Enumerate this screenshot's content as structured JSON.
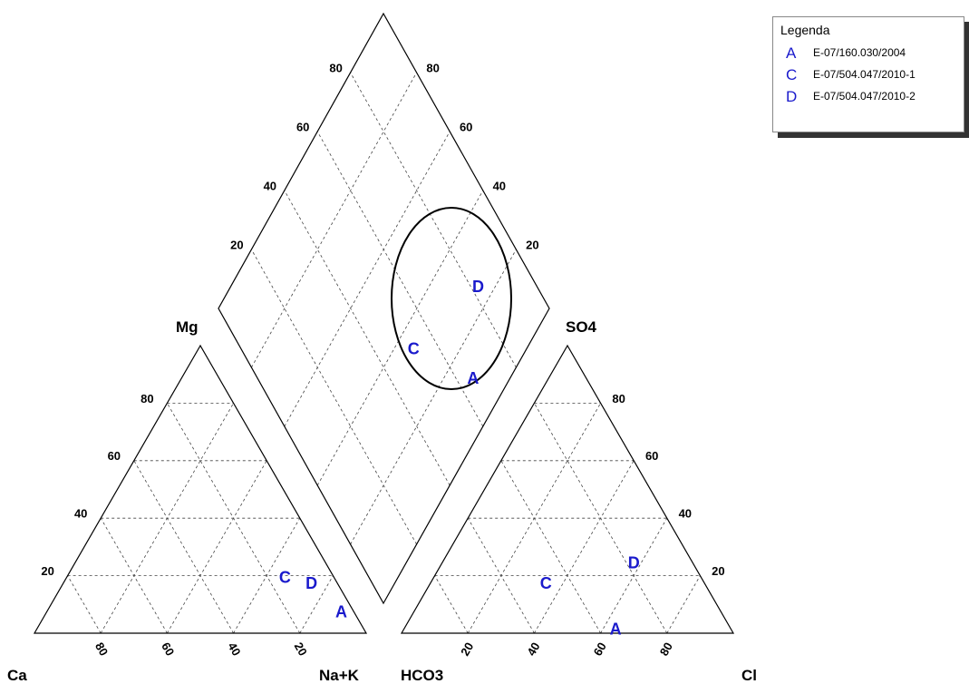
{
  "apex_labels": {
    "ca": "Ca",
    "nak": "Na+K",
    "hco3": "HCO3",
    "cl": "Cl",
    "mg": "Mg",
    "so4": "SO4"
  },
  "ticks": {
    "cation_left": [
      "20",
      "40",
      "60",
      "80"
    ],
    "cation_bottom": [
      "80",
      "60",
      "40",
      "20"
    ],
    "anion_right": [
      "80",
      "60",
      "40",
      "20"
    ],
    "anion_bottom": [
      "20",
      "40",
      "60",
      "80"
    ],
    "diamond_left": [
      "20",
      "40",
      "60",
      "80"
    ],
    "diamond_right": [
      "80",
      "60",
      "40",
      "20"
    ]
  },
  "legend": {
    "title": "Legenda",
    "items": [
      {
        "symbol": "A",
        "label": "E-07/160.030/2004"
      },
      {
        "symbol": "C",
        "label": "E-07/504.047/2010-1"
      },
      {
        "symbol": "D",
        "label": "E-07/504.047/2010-2"
      }
    ]
  },
  "samples": [
    {
      "symbol": "A",
      "cation": {
        "ca": 4,
        "mg": 7,
        "nak": 89
      },
      "anion": {
        "hco3": 35,
        "so4": 1,
        "cl": 64
      }
    },
    {
      "symbol": "C",
      "cation": {
        "ca": 15,
        "mg": 19,
        "nak": 66
      },
      "anion": {
        "hco3": 48,
        "so4": 17,
        "cl": 35
      }
    },
    {
      "symbol": "D",
      "cation": {
        "ca": 8,
        "mg": 17,
        "nak": 75
      },
      "anion": {
        "hco3": 18,
        "so4": 24,
        "cl": 58
      }
    }
  ],
  "colors": {
    "symbol": "#1a1acc",
    "frame": "#000000",
    "grid": "#444444",
    "ellipse": "#000000"
  }
}
